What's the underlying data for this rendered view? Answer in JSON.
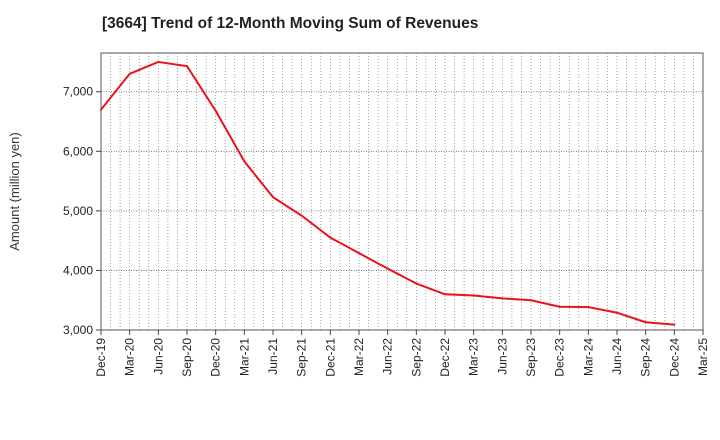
{
  "chart_data": {
    "type": "line",
    "title": "[3664]  Trend of 12-Month Moving Sum of Revenues",
    "ylabel": "Amount (million yen)",
    "xlabel": "",
    "ylim": [
      3000,
      7650
    ],
    "yticks": [
      3000,
      4000,
      5000,
      6000,
      7000
    ],
    "ytick_labels": [
      "3,000",
      "4,000",
      "5,000",
      "6,000",
      "7,000"
    ],
    "xtick_labels": [
      "Dec-19",
      "Mar-20",
      "Jun-20",
      "Sep-20",
      "Dec-20",
      "Mar-21",
      "Jun-21",
      "Sep-21",
      "Dec-21",
      "Mar-22",
      "Jun-22",
      "Sep-22",
      "Dec-22",
      "Mar-23",
      "Jun-23",
      "Sep-23",
      "Dec-23",
      "Mar-24",
      "Jun-24",
      "Sep-24",
      "Dec-24",
      "Mar-25"
    ],
    "grid": true,
    "line_color": "#e8141c",
    "series": [
      {
        "x": [
          "Dec-19",
          "Mar-20",
          "Jun-20",
          "Sep-20",
          "Dec-20",
          "Mar-21",
          "Jun-21",
          "Sep-21",
          "Dec-21",
          "Mar-22",
          "Jun-22",
          "Sep-22",
          "Dec-22",
          "Mar-23",
          "Jun-23",
          "Sep-23",
          "Dec-23",
          "Mar-24",
          "Jun-24",
          "Sep-24",
          "Dec-24"
        ],
        "values": [
          6700,
          7300,
          7500,
          7430,
          6680,
          5830,
          5230,
          4920,
          4550,
          4290,
          4030,
          3780,
          3600,
          3580,
          3530,
          3500,
          3390,
          3385,
          3290,
          3130,
          3090
        ]
      }
    ]
  }
}
